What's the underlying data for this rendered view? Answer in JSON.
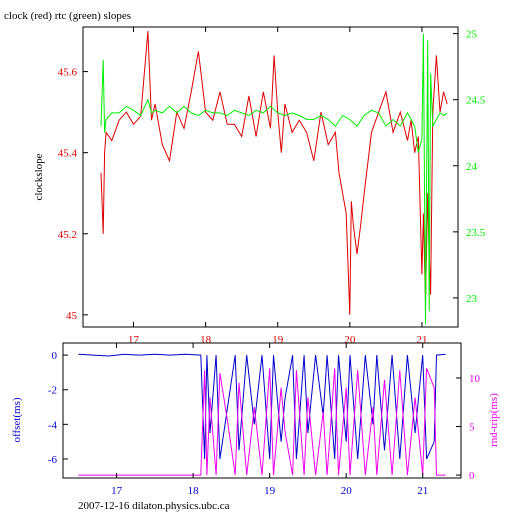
{
  "footer": "2007-12-16  dilaton.physics.ubc.ca",
  "colors": {
    "clock": "#dd0000",
    "rtc": "#00ee00",
    "offset": "#0000cc",
    "rndtrip": "#ee00ee",
    "axis": "#000000"
  },
  "chart_data": [
    {
      "type": "line",
      "title": "clock (red) rtc (green) slopes",
      "ylabel": "clockslope",
      "xlim": [
        16.3,
        21.5
      ],
      "x_ticks": [
        "17",
        "18",
        "19",
        "20",
        "21"
      ],
      "ylim_left": [
        44.97,
        45.71
      ],
      "y_ticks_left": [
        "45",
        "45.2",
        "45.4",
        "45.6"
      ],
      "ylim_right": [
        22.78,
        25.05
      ],
      "y_ticks_right": [
        "23",
        "23.5",
        "24",
        "24.5",
        "25"
      ],
      "series": [
        {
          "axis": "left",
          "color": "#dd0000",
          "x": [
            16.55,
            16.58,
            16.6,
            16.62,
            16.7,
            16.8,
            16.9,
            17.0,
            17.1,
            17.2,
            17.25,
            17.3,
            17.4,
            17.5,
            17.6,
            17.7,
            17.8,
            17.9,
            18.0,
            18.1,
            18.2,
            18.3,
            18.4,
            18.5,
            18.6,
            18.7,
            18.8,
            18.9,
            18.95,
            19.0,
            19.05,
            19.1,
            19.2,
            19.3,
            19.4,
            19.5,
            19.6,
            19.7,
            19.8,
            19.85,
            19.9,
            19.95,
            20.0,
            20.02,
            20.05,
            20.1,
            20.15,
            20.2,
            20.3,
            20.4,
            20.5,
            20.6,
            20.7,
            20.8,
            20.85,
            20.9,
            20.95,
            21.0,
            21.02,
            21.05,
            21.08,
            21.1,
            21.12,
            21.15,
            21.2,
            21.25,
            21.3,
            21.35
          ],
          "y": [
            45.35,
            45.2,
            45.4,
            45.45,
            45.43,
            45.48,
            45.5,
            45.47,
            45.49,
            45.7,
            45.48,
            45.52,
            45.42,
            45.38,
            45.5,
            45.46,
            45.55,
            45.65,
            45.5,
            45.48,
            45.55,
            45.47,
            45.47,
            45.44,
            45.54,
            45.44,
            45.55,
            45.46,
            45.64,
            45.5,
            45.4,
            45.52,
            45.45,
            45.48,
            45.45,
            45.38,
            45.5,
            45.42,
            45.45,
            45.35,
            45.3,
            45.25,
            45.0,
            45.28,
            45.22,
            45.15,
            45.22,
            45.3,
            45.45,
            45.5,
            45.55,
            45.45,
            45.5,
            45.43,
            45.48,
            45.4,
            45.44,
            45.1,
            45.25,
            45.03,
            45.3,
            45.15,
            45.05,
            45.5,
            45.64,
            45.5,
            45.55,
            45.52
          ]
        },
        {
          "axis": "right",
          "color": "#00ee00",
          "x": [
            16.55,
            16.58,
            16.6,
            16.62,
            16.7,
            16.8,
            16.9,
            17.0,
            17.1,
            17.2,
            17.25,
            17.3,
            17.4,
            17.5,
            17.6,
            17.7,
            17.8,
            17.9,
            18.0,
            18.1,
            18.2,
            18.3,
            18.4,
            18.5,
            18.6,
            18.7,
            18.8,
            18.9,
            19.0,
            19.1,
            19.2,
            19.3,
            19.4,
            19.5,
            19.6,
            19.7,
            19.8,
            19.9,
            20.0,
            20.1,
            20.2,
            20.3,
            20.4,
            20.5,
            20.6,
            20.7,
            20.8,
            20.85,
            20.9,
            20.95,
            21.0,
            21.02,
            21.05,
            21.08,
            21.1,
            21.12,
            21.15,
            21.2,
            21.25,
            21.3,
            21.35
          ],
          "y": [
            24.3,
            24.8,
            24.25,
            24.35,
            24.4,
            24.4,
            24.45,
            24.42,
            24.38,
            24.5,
            24.4,
            24.42,
            24.4,
            24.45,
            24.4,
            24.45,
            24.4,
            24.38,
            24.42,
            24.4,
            24.4,
            24.38,
            24.42,
            24.4,
            24.38,
            24.42,
            24.4,
            24.45,
            24.4,
            24.38,
            24.4,
            24.38,
            24.35,
            24.35,
            24.38,
            24.35,
            24.3,
            24.38,
            24.35,
            24.3,
            24.38,
            24.42,
            24.4,
            24.3,
            24.35,
            24.3,
            24.4,
            24.35,
            24.3,
            24.1,
            24.2,
            25.0,
            22.8,
            24.95,
            22.9,
            24.7,
            24.3,
            24.35,
            24.4,
            24.38,
            24.4
          ]
        }
      ]
    },
    {
      "type": "line",
      "title": "",
      "ylabel_left": "offset(ms)",
      "ylabel_right": "rnd-trip(ms)",
      "xlim": [
        16.3,
        21.5
      ],
      "x_ticks": [
        "17",
        "18",
        "19",
        "20",
        "21"
      ],
      "ylim_left": [
        -7.1,
        0.7
      ],
      "y_ticks_left": [
        "0",
        "-2",
        "-4",
        "-6"
      ],
      "ylim_right": [
        -0.3,
        13.6
      ],
      "y_ticks_right": [
        "0",
        "5",
        "10"
      ],
      "series": [
        {
          "axis": "left",
          "color": "#0000cc",
          "x": [
            16.5,
            16.7,
            16.9,
            17.1,
            17.3,
            17.5,
            17.7,
            17.9,
            18.1,
            18.15,
            18.18,
            18.22,
            18.3,
            18.35,
            18.45,
            18.55,
            18.6,
            18.7,
            18.8,
            18.9,
            19.0,
            19.05,
            19.15,
            19.2,
            19.3,
            19.35,
            19.45,
            19.5,
            19.6,
            19.7,
            19.75,
            19.85,
            19.9,
            20.0,
            20.05,
            20.15,
            20.25,
            20.35,
            20.4,
            20.5,
            20.6,
            20.7,
            20.8,
            20.9,
            21.0,
            21.05,
            21.15,
            21.18,
            21.3
          ],
          "y": [
            0.05,
            0.0,
            -0.05,
            0.05,
            0.0,
            0.05,
            0.0,
            0.05,
            0.0,
            -6.0,
            0.0,
            -4.5,
            0.0,
            -6.0,
            -3.0,
            0.0,
            -5.5,
            0.0,
            -4.0,
            0.0,
            -6.0,
            0.0,
            -5.0,
            -2.5,
            0.0,
            -6.0,
            0.0,
            -4.5,
            0.0,
            -3.5,
            0.0,
            -6.0,
            0.0,
            -5.0,
            0.0,
            -6.0,
            0.0,
            -4.0,
            0.0,
            -5.5,
            0.0,
            -6.0,
            0.0,
            -4.5,
            0.0,
            -6.0,
            -5.0,
            0.0,
            0.05
          ]
        },
        {
          "axis": "right",
          "color": "#ee00ee",
          "x": [
            16.5,
            16.9,
            17.3,
            17.7,
            18.1,
            18.15,
            18.18,
            18.22,
            18.3,
            18.35,
            18.45,
            18.55,
            18.6,
            18.7,
            18.8,
            18.9,
            19.0,
            19.05,
            19.15,
            19.2,
            19.3,
            19.35,
            19.45,
            19.5,
            19.6,
            19.7,
            19.75,
            19.85,
            19.9,
            20.0,
            20.05,
            20.15,
            20.25,
            20.35,
            20.4,
            20.5,
            20.6,
            20.7,
            20.8,
            20.9,
            21.0,
            21.05,
            21.15,
            21.18,
            21.3
          ],
          "y": [
            0.0,
            0.0,
            0.0,
            0.0,
            0.0,
            10.8,
            0.0,
            8.0,
            0.0,
            10.5,
            5.5,
            0.0,
            9.5,
            0.0,
            7.0,
            0.0,
            11.0,
            0.0,
            9.0,
            4.5,
            0.0,
            10.8,
            0.0,
            8.0,
            0.0,
            6.5,
            0.0,
            11.0,
            0.0,
            9.0,
            0.0,
            10.8,
            0.0,
            7.0,
            0.0,
            9.8,
            0.0,
            10.8,
            0.0,
            8.0,
            0.0,
            11.0,
            9.0,
            0.0,
            0.0
          ]
        }
      ]
    }
  ]
}
